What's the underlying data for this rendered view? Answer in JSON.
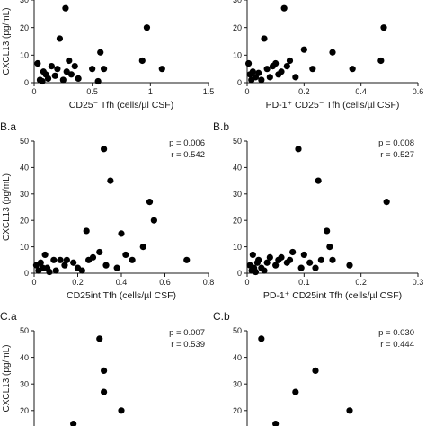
{
  "chart_data": [
    {
      "id": "A.a",
      "type": "scatter",
      "panel_label": "",
      "xlabel": "CD25⁻ Tfh (cells/µl CSF)",
      "ylabel": "CXCL13 (pg/mL)",
      "xlim": [
        0,
        1.5
      ],
      "ylim": [
        0,
        30
      ],
      "xticks": [
        "0",
        "0.5",
        "1",
        "1.5"
      ],
      "yticks": [
        "0",
        "10",
        "20",
        "30"
      ],
      "stats_p": "",
      "stats_r": "",
      "points": [
        [
          0.03,
          7
        ],
        [
          0.05,
          1
        ],
        [
          0.07,
          0.5
        ],
        [
          0.08,
          4
        ],
        [
          0.1,
          3
        ],
        [
          0.12,
          1.5
        ],
        [
          0.15,
          6
        ],
        [
          0.18,
          2.5
        ],
        [
          0.2,
          5
        ],
        [
          0.22,
          16
        ],
        [
          0.25,
          1
        ],
        [
          0.27,
          27
        ],
        [
          0.28,
          4
        ],
        [
          0.3,
          8
        ],
        [
          0.32,
          3
        ],
        [
          0.35,
          6
        ],
        [
          0.38,
          1.5
        ],
        [
          0.5,
          5
        ],
        [
          0.55,
          0.5
        ],
        [
          0.57,
          11
        ],
        [
          0.6,
          5
        ],
        [
          0.93,
          8
        ],
        [
          0.97,
          20
        ],
        [
          1.1,
          5
        ]
      ]
    },
    {
      "id": "A.b",
      "type": "scatter",
      "panel_label": "",
      "xlabel": "PD-1⁺ CD25⁻ Tfh (cells/µl CSF)",
      "ylabel": "",
      "xlim": [
        0,
        0.6
      ],
      "ylim": [
        0,
        30
      ],
      "xticks": [
        "0",
        "0.2",
        "0.4",
        "0.6"
      ],
      "yticks": [
        "0",
        "10",
        "20",
        "30"
      ],
      "stats_p": "",
      "stats_r": "",
      "points": [
        [
          0.005,
          7
        ],
        [
          0.01,
          3
        ],
        [
          0.015,
          1
        ],
        [
          0.02,
          4
        ],
        [
          0.03,
          2
        ],
        [
          0.04,
          3.5
        ],
        [
          0.05,
          1
        ],
        [
          0.06,
          16
        ],
        [
          0.07,
          5
        ],
        [
          0.08,
          2
        ],
        [
          0.09,
          6
        ],
        [
          0.1,
          7
        ],
        [
          0.11,
          3
        ],
        [
          0.12,
          4
        ],
        [
          0.13,
          27
        ],
        [
          0.14,
          6
        ],
        [
          0.15,
          8
        ],
        [
          0.17,
          2
        ],
        [
          0.2,
          12
        ],
        [
          0.23,
          5
        ],
        [
          0.3,
          11
        ],
        [
          0.37,
          5
        ],
        [
          0.47,
          8
        ],
        [
          0.48,
          20
        ]
      ]
    },
    {
      "id": "B.a",
      "type": "scatter",
      "panel_label": "B.a",
      "xlabel": "CD25int Tfh (cells/µl CSF)",
      "ylabel": "CXCL13 (pg/mL)",
      "xlim": [
        0,
        0.8
      ],
      "ylim": [
        0,
        50
      ],
      "xticks": [
        "0",
        "0.2",
        "0.4",
        "0.6",
        "0.8"
      ],
      "yticks": [
        "0",
        "10",
        "20",
        "30",
        "40",
        "50"
      ],
      "stats_p": "p = 0.006",
      "stats_r": "r = 0.542",
      "points": [
        [
          0.01,
          3
        ],
        [
          0.02,
          1
        ],
        [
          0.03,
          4
        ],
        [
          0.04,
          2
        ],
        [
          0.05,
          7
        ],
        [
          0.06,
          2
        ],
        [
          0.07,
          0.5
        ],
        [
          0.09,
          5
        ],
        [
          0.1,
          1
        ],
        [
          0.12,
          5
        ],
        [
          0.14,
          3
        ],
        [
          0.15,
          5
        ],
        [
          0.18,
          4
        ],
        [
          0.2,
          2
        ],
        [
          0.22,
          1
        ],
        [
          0.24,
          16
        ],
        [
          0.25,
          5
        ],
        [
          0.27,
          6
        ],
        [
          0.3,
          8
        ],
        [
          0.32,
          47
        ],
        [
          0.33,
          3
        ],
        [
          0.35,
          35
        ],
        [
          0.38,
          2
        ],
        [
          0.4,
          15
        ],
        [
          0.42,
          7
        ],
        [
          0.45,
          5
        ],
        [
          0.5,
          10
        ],
        [
          0.53,
          27
        ],
        [
          0.55,
          20
        ],
        [
          0.7,
          5
        ]
      ]
    },
    {
      "id": "B.b",
      "type": "scatter",
      "panel_label": "B.b",
      "xlabel": "PD-1⁺ CD25int Tfh (cells/µl CSF)",
      "ylabel": "",
      "xlim": [
        0,
        0.3
      ],
      "ylim": [
        0,
        50
      ],
      "xticks": [
        "0",
        "0.1",
        "0.2",
        "0.3"
      ],
      "yticks": [
        "0",
        "10",
        "20",
        "30",
        "40",
        "50"
      ],
      "stats_p": "p = 0.008",
      "stats_r": "r = 0.527",
      "points": [
        [
          0.005,
          3
        ],
        [
          0.008,
          1
        ],
        [
          0.01,
          7
        ],
        [
          0.012,
          2
        ],
        [
          0.015,
          0.5
        ],
        [
          0.018,
          4
        ],
        [
          0.02,
          5
        ],
        [
          0.025,
          2
        ],
        [
          0.03,
          1
        ],
        [
          0.035,
          4
        ],
        [
          0.04,
          6
        ],
        [
          0.05,
          3
        ],
        [
          0.055,
          5
        ],
        [
          0.06,
          6
        ],
        [
          0.07,
          4
        ],
        [
          0.075,
          5
        ],
        [
          0.08,
          8
        ],
        [
          0.09,
          47
        ],
        [
          0.095,
          2
        ],
        [
          0.1,
          7
        ],
        [
          0.11,
          4
        ],
        [
          0.12,
          2
        ],
        [
          0.125,
          35
        ],
        [
          0.13,
          5
        ],
        [
          0.14,
          16
        ],
        [
          0.145,
          10
        ],
        [
          0.15,
          5
        ],
        [
          0.18,
          3
        ],
        [
          0.245,
          27
        ]
      ]
    },
    {
      "id": "C.a",
      "type": "scatter",
      "panel_label": "C.a",
      "xlabel": "",
      "ylabel": "CXCL13 (pg/mL)",
      "xlim": [
        0,
        0.8
      ],
      "ylim": [
        0,
        50
      ],
      "xticks": [],
      "yticks": [
        "20",
        "30",
        "40",
        "50"
      ],
      "stats_p": "p = 0.007",
      "stats_r": "r = 0.539",
      "points": [
        [
          0.3,
          47
        ],
        [
          0.32,
          35
        ],
        [
          0.32,
          27
        ],
        [
          0.4,
          20
        ],
        [
          0.18,
          15
        ]
      ]
    },
    {
      "id": "C.b",
      "type": "scatter",
      "panel_label": "C.b",
      "xlabel": "",
      "ylabel": "",
      "xlim": [
        0,
        0.3
      ],
      "ylim": [
        0,
        50
      ],
      "xticks": [],
      "yticks": [
        "20",
        "30",
        "40",
        "50"
      ],
      "stats_p": "p = 0.030",
      "stats_r": "r = 0.444",
      "points": [
        [
          0.025,
          47
        ],
        [
          0.12,
          35
        ],
        [
          0.085,
          27
        ],
        [
          0.18,
          20
        ],
        [
          0.05,
          15
        ]
      ]
    }
  ]
}
